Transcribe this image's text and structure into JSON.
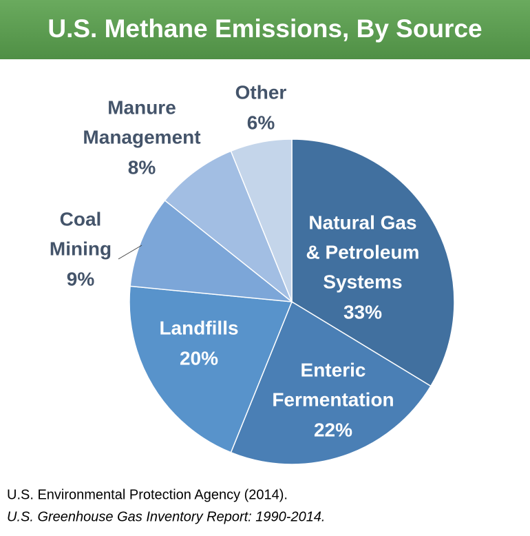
{
  "chart_data": {
    "type": "pie",
    "title": "U.S. Methane Emissions, By Source",
    "categories": [
      [
        "Natural Gas",
        "& Petroleum",
        "Systems"
      ],
      [
        "Enteric",
        "Fermentation"
      ],
      [
        "Landfills"
      ],
      [
        "Coal",
        "Mining"
      ],
      [
        "Manure",
        "Management"
      ],
      [
        "Other"
      ]
    ],
    "values": [
      33,
      22,
      20,
      9,
      8,
      6
    ],
    "value_labels": [
      "33%",
      "22%",
      "20%",
      "9%",
      "8%",
      "6%"
    ],
    "colors": [
      "#41709f",
      "#4a7fb5",
      "#5893cb",
      "#7ca6d8",
      "#a2bee3",
      "#c4d5ea"
    ],
    "source": [
      "U.S. Environmental Protection Agency (2014).",
      "U.S. Greenhouse Gas Inventory Report: 1990-2014."
    ]
  }
}
